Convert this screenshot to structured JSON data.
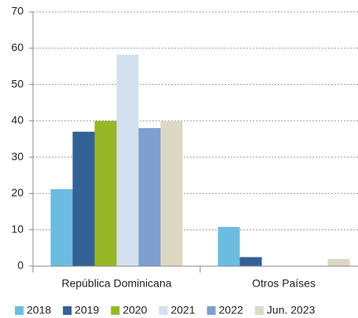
{
  "chart_data": {
    "type": "bar",
    "categories": [
      "República Dominicana",
      "Otros Países"
    ],
    "series": [
      {
        "name": "2018",
        "color": "#6bbde0",
        "values": [
          21.2,
          10.8
        ]
      },
      {
        "name": "2019",
        "color": "#336196",
        "values": [
          37,
          2.5
        ]
      },
      {
        "name": "2020",
        "color": "#97b825",
        "values": [
          40,
          0
        ]
      },
      {
        "name": "2021",
        "color": "#d3e0ef",
        "values": [
          58.2,
          0
        ]
      },
      {
        "name": "2022",
        "color": "#7da0d0",
        "values": [
          38,
          0
        ]
      },
      {
        "name": "Jun. 2023",
        "color": "#ddd8c3",
        "values": [
          40,
          2
        ]
      }
    ],
    "ylim": [
      0,
      70
    ],
    "yticks": [
      0,
      10,
      20,
      30,
      40,
      50,
      60,
      70
    ],
    "grid": true,
    "legend": "bottom"
  }
}
